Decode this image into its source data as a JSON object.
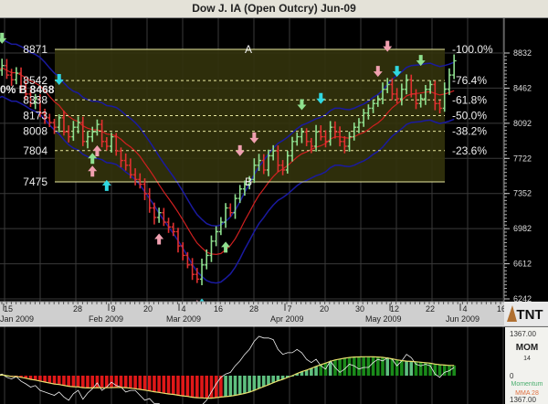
{
  "title": "Dow J. IA (Open Outcry) Jun-09",
  "logo": "TNT",
  "overlay_text": "0% B 8468",
  "chart_data": {
    "type": "ohlc",
    "title": "Dow J. IA (Open Outcry) Jun-09",
    "price_axis": {
      "ticks": [
        "8832",
        "8462",
        "8092",
        "7722",
        "7352",
        "6982",
        "6612",
        "6242"
      ],
      "ylim": [
        6242,
        8832
      ]
    },
    "date_axis": {
      "day_ticks": [
        "15",
        "28",
        "9",
        "20",
        "4",
        "16",
        "28",
        "7",
        "20",
        "30",
        "12",
        "22",
        "4",
        "16"
      ],
      "month_labels": [
        "Jan 2009",
        "Feb 2009",
        "Mar 2009",
        "Apr 2009",
        "May 2009",
        "Jun 2009"
      ]
    },
    "closes": [
      8650,
      8700,
      8600,
      8550,
      8620,
      8480,
      8400,
      8300,
      8350,
      8200,
      8150,
      8100,
      8050,
      8150,
      8000,
      7950,
      8050,
      8100,
      7900,
      7950,
      8000,
      8080,
      7900,
      7850,
      7950,
      7800,
      7700,
      7650,
      7550,
      7500,
      7450,
      7350,
      7200,
      7100,
      7150,
      7050,
      7000,
      6950,
      6800,
      6700,
      6600,
      6500,
      6450,
      6600,
      6700,
      6850,
      6950,
      7050,
      7200,
      7150,
      7300,
      7400,
      7450,
      7500,
      7650,
      7700,
      7600,
      7750,
      7800,
      7650,
      7600,
      7750,
      7900,
      7950,
      8000,
      7900,
      7850,
      8000,
      7950,
      7900,
      8050,
      8000,
      7900,
      7850,
      7950,
      8050,
      8100,
      8200,
      8250,
      8300,
      8350,
      8450,
      8500,
      8400,
      8350,
      8450,
      8550,
      8400,
      8300,
      8350,
      8450,
      8500,
      8300,
      8250,
      8450,
      8600,
      8750
    ],
    "fibonacci": {
      "start_label": "A",
      "end_label": "B",
      "levels": [
        {
          "price": "8871",
          "pct": "-100.0%"
        },
        {
          "price": "8542",
          "pct": "-76.4%"
        },
        {
          "price": "8338",
          "pct": "-61.8%"
        },
        {
          "price": "8173",
          "pct": "-50.0%"
        },
        {
          "price": "8008",
          "pct": "-38.2%"
        },
        {
          "price": "7804",
          "pct": "-23.6%"
        },
        {
          "price": "7475",
          "pct": ""
        }
      ]
    },
    "signals": [
      {
        "i": 1,
        "type": "down",
        "color": "#8fe08f"
      },
      {
        "i": 13,
        "type": "down",
        "color": "#30d8e0"
      },
      {
        "i": 21,
        "type": "up",
        "color": "#f0a0b0"
      },
      {
        "i": 20,
        "type": "up",
        "color": "#f0a0b0"
      },
      {
        "i": 20,
        "type": "up",
        "color": "#8fe08f"
      },
      {
        "i": 23,
        "type": "up",
        "color": "#30d8e0"
      },
      {
        "i": 34,
        "type": "up",
        "color": "#f0a0b0"
      },
      {
        "i": 43,
        "type": "up",
        "color": "#30d8e0"
      },
      {
        "i": 42,
        "type": "up",
        "color": "#f0a0b0"
      },
      {
        "i": 51,
        "type": "down",
        "color": "#f0a0b0"
      },
      {
        "i": 54,
        "type": "down",
        "color": "#f0a0b0"
      },
      {
        "i": 48,
        "type": "up",
        "color": "#8fe08f"
      },
      {
        "i": 64,
        "type": "down",
        "color": "#8fe08f"
      },
      {
        "i": 68,
        "type": "down",
        "color": "#30d8e0"
      },
      {
        "i": 80,
        "type": "down",
        "color": "#f0a0b0"
      },
      {
        "i": 82,
        "type": "down",
        "color": "#f0a0b0"
      },
      {
        "i": 84,
        "type": "down",
        "color": "#30d8e0"
      },
      {
        "i": 89,
        "type": "down",
        "color": "#8fe08f"
      }
    ],
    "colors": {
      "up_bar": "#8fe08f",
      "down_bar": "#e03030",
      "ma": "#d02020",
      "band": "#1a1aa0",
      "fib_fill": "#33330c",
      "fib_line": "#e8e8a0"
    },
    "indicator": {
      "name": "MOM",
      "period": "14",
      "top_label": "1367.00",
      "zero_label": "0",
      "bottom_label": "1367.00",
      "legend": [
        {
          "name": "Momentum",
          "color": "#4caf70"
        },
        {
          "name": "MMA 28",
          "color": "#e07040"
        }
      ],
      "range": [
        -1367,
        1367
      ]
    }
  }
}
